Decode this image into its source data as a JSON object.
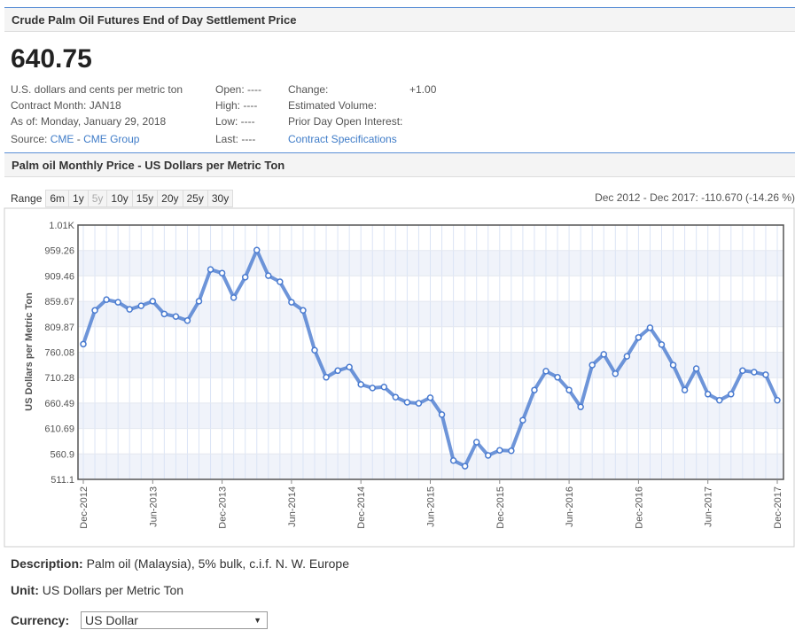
{
  "header": {
    "title": "Crude Palm Oil Futures End of Day Settlement Price"
  },
  "quote": {
    "price": "640.75",
    "rows": [
      [
        "U.S. dollars and cents per metric ton",
        "Open: ----",
        "Change:",
        "+1.00"
      ],
      [
        "Contract Month: JAN18",
        "High: ----",
        "Estimated Volume:"
      ],
      [
        "As of: Monday, January 29, 2018",
        "Low: ----",
        "Prior Day Open Interest:"
      ]
    ],
    "source": {
      "label": "Source:",
      "link1": "CME",
      "sep": "-",
      "link2": "CME Group",
      "last": "Last: ----",
      "spec": "Contract Specifications"
    }
  },
  "section": {
    "title": "Palm oil Monthly Price - US Dollars per Metric Ton",
    "range_label": "Range",
    "ranges": [
      "6m",
      "1y",
      "5y",
      "10y",
      "15y",
      "20y",
      "25y",
      "30y"
    ],
    "summary": "Dec 2012 - Dec 2017: -110.670 (-14.26 %)"
  },
  "chart_data": {
    "type": "line",
    "y_label": "US Dollars per Metric Ton",
    "color": "#4a7bd0",
    "categories": [
      "Dec-2012",
      null,
      null,
      null,
      null,
      null,
      "Jun-2013",
      null,
      null,
      null,
      null,
      null,
      "Dec-2013",
      null,
      null,
      null,
      null,
      null,
      "Jun-2014",
      null,
      null,
      null,
      null,
      null,
      "Dec-2014",
      null,
      null,
      null,
      null,
      null,
      "Jun-2015",
      null,
      null,
      null,
      null,
      null,
      "Dec-2015",
      null,
      null,
      null,
      null,
      null,
      "Jun-2016",
      null,
      null,
      null,
      null,
      null,
      "Dec-2016",
      null,
      null,
      null,
      null,
      null,
      "Jun-2017",
      null,
      null,
      null,
      null,
      null,
      "Dec-2017"
    ],
    "values": [
      776,
      842,
      863,
      858,
      844,
      851,
      860,
      835,
      830,
      822,
      860,
      922,
      915,
      867,
      907,
      960,
      910,
      898,
      858,
      842,
      764,
      711,
      724,
      731,
      697,
      690,
      692,
      672,
      662,
      660,
      671,
      638,
      548,
      537,
      584,
      558,
      568,
      567,
      627,
      686,
      723,
      711,
      686,
      653,
      735,
      756,
      718,
      752,
      789,
      808,
      775,
      735,
      686,
      728,
      678,
      666,
      678,
      724,
      721,
      716,
      666
    ],
    "ylim": [
      511.1,
      1009.06
    ],
    "yticks": [
      511.1,
      560.9,
      610.69,
      660.49,
      710.28,
      760.08,
      809.87,
      859.67,
      909.46,
      959.26,
      {
        "value": 1009.06,
        "label": "1.01K"
      }
    ],
    "grid": true
  },
  "footer": {
    "description_label": "Description:",
    "description": "Palm oil (Malaysia), 5% bulk, c.i.f. N. W. Europe",
    "unit_label": "Unit:",
    "unit": "US Dollars per Metric Ton",
    "currency_label": "Currency:",
    "currency": "US Dollar"
  }
}
